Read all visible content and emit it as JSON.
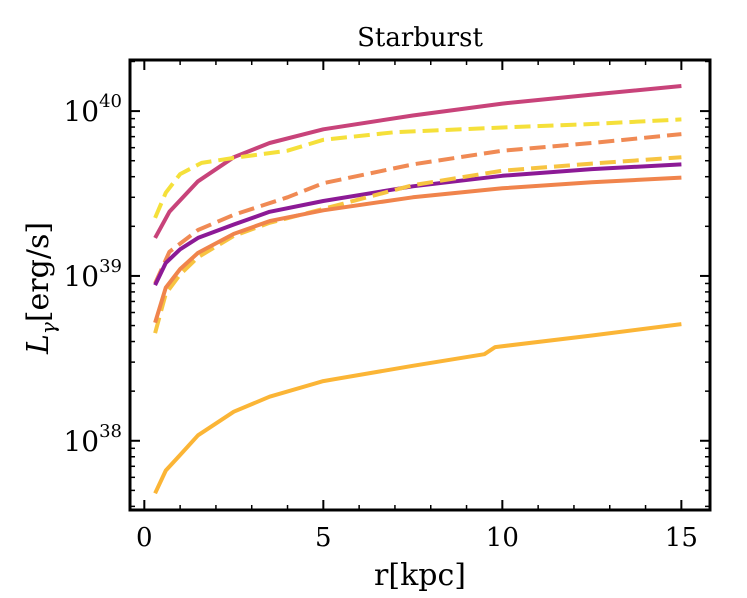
{
  "chart_data": {
    "type": "line",
    "title": "Starburst",
    "xlabel": "r[kpc]",
    "ylabel": {
      "main": "L",
      "subscript": "γ",
      "suffix": "[erg/s]"
    },
    "x_scale": "linear",
    "y_scale": "log",
    "xlim": [
      -0.4,
      15.8
    ],
    "ylim_log10": [
      37.58,
      40.31
    ],
    "x_ticks": [
      {
        "value": 0,
        "label": "0"
      },
      {
        "value": 5,
        "label": "5"
      },
      {
        "value": 10,
        "label": "10"
      },
      {
        "value": 15,
        "label": "15"
      }
    ],
    "y_ticks": [
      {
        "log10": 38,
        "base": "10",
        "exp": "38"
      },
      {
        "log10": 39,
        "base": "10",
        "exp": "39"
      },
      {
        "log10": 40,
        "base": "10",
        "exp": "40"
      }
    ],
    "series": [
      {
        "name": "magenta solid",
        "color": "#c8437a",
        "style": "solid",
        "points": [
          [
            0.3,
            1.7e+39
          ],
          [
            0.7,
            2.45e+39
          ],
          [
            1.5,
            3.75e+39
          ],
          [
            2.5,
            5.25e+39
          ],
          [
            3.5,
            6.4e+39
          ],
          [
            5,
            7.75e+39
          ],
          [
            7.5,
            9.4e+39
          ],
          [
            10,
            1.11e+40
          ],
          [
            12.5,
            1.26e+40
          ],
          [
            15,
            1.42e+40
          ]
        ]
      },
      {
        "name": "yellow dashed (upper)",
        "color": "#f5e03a",
        "style": "dashed",
        "points": [
          [
            0.3,
            2.25e+39
          ],
          [
            0.6,
            3.2e+39
          ],
          [
            1.0,
            4.15e+39
          ],
          [
            1.6,
            4.85e+39
          ],
          [
            2.5,
            5.2e+39
          ],
          [
            4,
            5.75e+39
          ],
          [
            5,
            6.7e+39
          ],
          [
            7,
            7.45e+39
          ],
          [
            10,
            7.95e+39
          ],
          [
            12.5,
            8.35e+39
          ],
          [
            15,
            8.9e+39
          ]
        ]
      },
      {
        "name": "orange dashed (upper)",
        "color": "#f08a54",
        "style": "dashed",
        "points": [
          [
            0.3,
            9e+38
          ],
          [
            0.7,
            1.4e+39
          ],
          [
            1.5,
            1.9e+39
          ],
          [
            2.5,
            2.35e+39
          ],
          [
            4,
            3e+39
          ],
          [
            5,
            3.65e+39
          ],
          [
            7.5,
            4.75e+39
          ],
          [
            10,
            5.75e+39
          ],
          [
            12.5,
            6.4e+39
          ],
          [
            15,
            7.25e+39
          ]
        ]
      },
      {
        "name": "purple solid",
        "color": "#8c1a96",
        "style": "solid",
        "points": [
          [
            0.3,
            8.8e+38
          ],
          [
            0.6,
            1.2e+39
          ],
          [
            1.0,
            1.45e+39
          ],
          [
            1.5,
            1.7e+39
          ],
          [
            2.5,
            2.05e+39
          ],
          [
            3.5,
            2.45e+39
          ],
          [
            5,
            2.85e+39
          ],
          [
            7.5,
            3.5e+39
          ],
          [
            10,
            4.05e+39
          ],
          [
            12.5,
            4.45e+39
          ],
          [
            15,
            4.75e+39
          ]
        ]
      },
      {
        "name": "yellow-orange dashed (lower)",
        "color": "#f7c441",
        "style": "dashed",
        "points": [
          [
            0.3,
            4.5e+38
          ],
          [
            0.6,
            7.8e+38
          ],
          [
            1.0,
            1.02e+39
          ],
          [
            1.5,
            1.3e+39
          ],
          [
            2.5,
            1.75e+39
          ],
          [
            3.5,
            2.1e+39
          ],
          [
            5,
            2.55e+39
          ],
          [
            7.5,
            3.55e+39
          ],
          [
            10,
            4.35e+39
          ],
          [
            12.5,
            4.8e+39
          ],
          [
            15,
            5.25e+39
          ]
        ]
      },
      {
        "name": "orange solid",
        "color": "#f0844c",
        "style": "solid",
        "points": [
          [
            0.3,
            5.2e+38
          ],
          [
            0.6,
            8.5e+38
          ],
          [
            1.0,
            1.1e+39
          ],
          [
            1.5,
            1.38e+39
          ],
          [
            2.5,
            1.8e+39
          ],
          [
            3.5,
            2.15e+39
          ],
          [
            5,
            2.5e+39
          ],
          [
            7.5,
            3e+39
          ],
          [
            10,
            3.4e+39
          ],
          [
            12.5,
            3.7e+39
          ],
          [
            15,
            3.95e+39
          ]
        ]
      },
      {
        "name": "light orange solid (lowest)",
        "color": "#fbb536",
        "style": "solid",
        "points": [
          [
            0.3,
            4.8e+37
          ],
          [
            0.6,
            6.6e+37
          ],
          [
            1.0,
            8.2e+37
          ],
          [
            1.5,
            1.08e+38
          ],
          [
            2.5,
            1.5e+38
          ],
          [
            3.5,
            1.85e+38
          ],
          [
            5,
            2.3e+38
          ],
          [
            7.5,
            2.85e+38
          ],
          [
            9.5,
            3.35e+38
          ],
          [
            9.8,
            3.7e+38
          ],
          [
            12.5,
            4.35e+38
          ],
          [
            15,
            5.1e+38
          ]
        ]
      }
    ]
  }
}
